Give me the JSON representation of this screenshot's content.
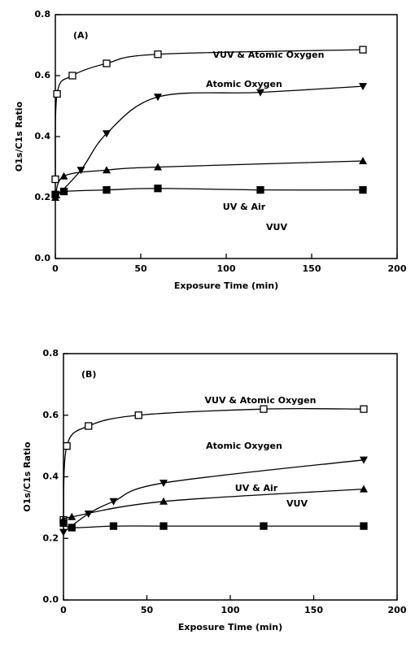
{
  "chart_data": [
    {
      "type": "line",
      "panel_label": "(A)",
      "xlabel": "Exposure Time (min)",
      "ylabel": "O1s/C1s Ratio",
      "xlim": [
        0,
        200
      ],
      "xticks": [
        0,
        50,
        100,
        150,
        200
      ],
      "ylim": [
        0,
        0.8
      ],
      "yticks": [
        {
          "value": 0,
          "label": "0.0"
        },
        0.2,
        0.4,
        0.6,
        0.8
      ],
      "series": [
        {
          "name": "VUV & Atomic Oxygen",
          "color": "#000000",
          "marker": "square-open",
          "x": [
            0,
            1,
            10,
            30,
            60,
            180
          ],
          "values": [
            0.26,
            0.54,
            0.6,
            0.64,
            0.67,
            0.685
          ]
        },
        {
          "name": "Atomic Oxygen",
          "color": "#000000",
          "marker": "triangle-down",
          "x": [
            0,
            15,
            30,
            60,
            120,
            180
          ],
          "values": [
            0.2,
            0.29,
            0.41,
            0.53,
            0.545,
            0.565
          ]
        },
        {
          "name": "UV & Air",
          "color": "#000000",
          "marker": "triangle",
          "x": [
            0,
            5,
            30,
            60,
            180
          ],
          "values": [
            0.2,
            0.27,
            0.29,
            0.3,
            0.32
          ]
        },
        {
          "name": "VUV",
          "color": "#000000",
          "marker": "square",
          "x": [
            0,
            5,
            30,
            60,
            120,
            180
          ],
          "values": [
            0.21,
            0.22,
            0.225,
            0.23,
            0.225,
            0.225
          ]
        }
      ]
    },
    {
      "type": "line",
      "panel_label": "(B)",
      "xlabel": "Exposure Time (min)",
      "ylabel": "O1s/C1s Ratio",
      "xlim": [
        0,
        200
      ],
      "xticks": [
        0,
        50,
        100,
        150,
        200
      ],
      "ylim": [
        0,
        0.8
      ],
      "yticks": [
        {
          "value": 0,
          "label": "0.0"
        },
        0.2,
        0.4,
        0.6,
        0.8
      ],
      "series": [
        {
          "name": "VUV & Atomic Oxygen",
          "color": "#000000",
          "marker": "square-open",
          "x": [
            0,
            2,
            15,
            45,
            120,
            180
          ],
          "values": [
            0.26,
            0.5,
            0.565,
            0.6,
            0.62,
            0.62
          ]
        },
        {
          "name": "Atomic Oxygen",
          "color": "#000000",
          "marker": "triangle-down",
          "x": [
            0,
            15,
            30,
            60,
            180
          ],
          "values": [
            0.22,
            0.28,
            0.32,
            0.38,
            0.455
          ]
        },
        {
          "name": "UV & Air",
          "color": "#000000",
          "marker": "triangle",
          "x": [
            0,
            5,
            60,
            180
          ],
          "values": [
            0.26,
            0.27,
            0.32,
            0.36
          ]
        },
        {
          "name": "VUV",
          "color": "#000000",
          "marker": "square",
          "x": [
            0,
            5,
            30,
            60,
            120,
            180
          ],
          "values": [
            0.25,
            0.235,
            0.24,
            0.24,
            0.24,
            0.24
          ]
        }
      ]
    }
  ]
}
